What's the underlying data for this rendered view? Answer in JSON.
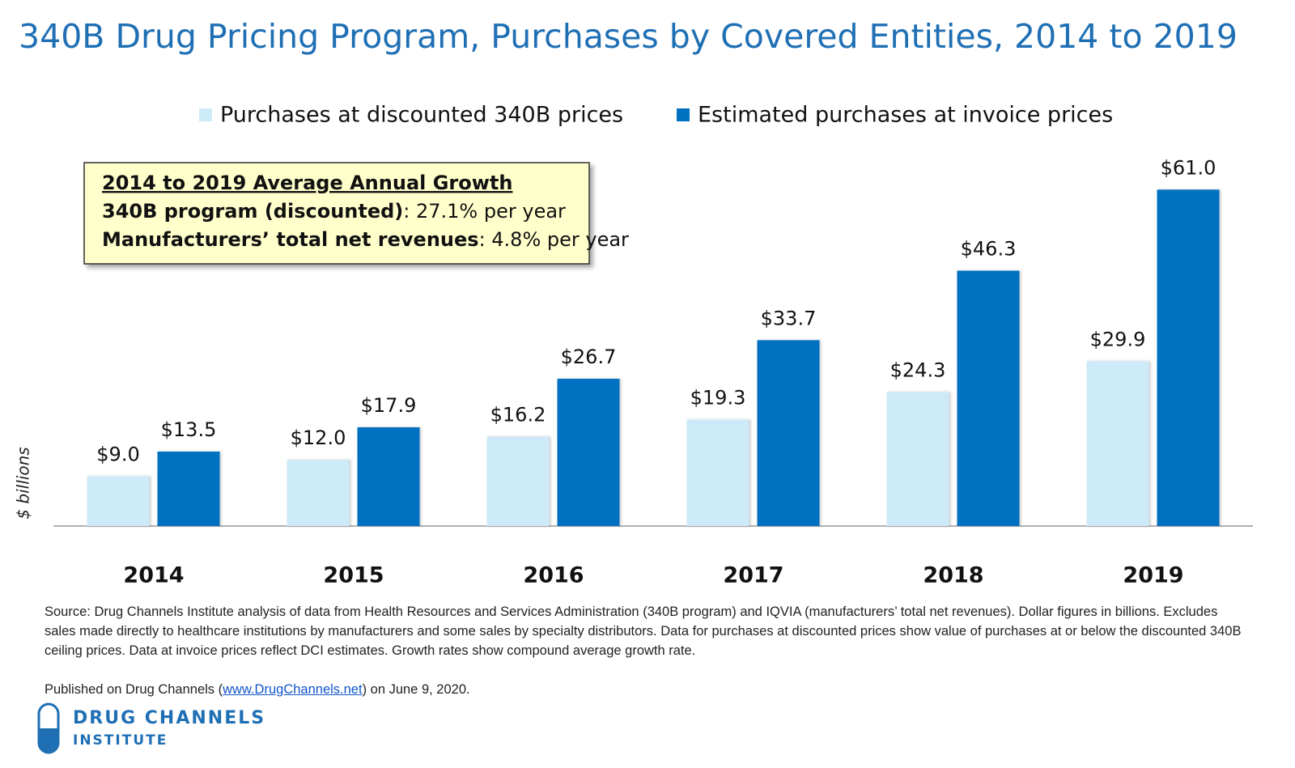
{
  "chart_data": {
    "type": "bar",
    "title": "340B Drug Pricing Program, Purchases by Covered Entities, 2014 to 2019",
    "y_label": "$ billions",
    "categories": [
      "2014",
      "2015",
      "2016",
      "2017",
      "2018",
      "2019"
    ],
    "series": [
      {
        "name": "Purchases at discounted 340B prices",
        "color": "#cdeaf8",
        "values": [
          9.0,
          12.0,
          16.2,
          19.3,
          24.3,
          29.9
        ],
        "value_labels": [
          "$9.0",
          "$12.0",
          "$16.2",
          "$19.3",
          "$24.3",
          "$29.9"
        ]
      },
      {
        "name": "Estimated purchases at invoice prices",
        "color": "#0070c0",
        "values": [
          13.5,
          17.9,
          26.7,
          33.7,
          46.3,
          61.0
        ],
        "value_labels": [
          "$13.5",
          "$17.9",
          "$26.7",
          "$33.7",
          "$46.3",
          "$61.0"
        ]
      }
    ],
    "ylim": [
      0,
      70
    ],
    "annotation": {
      "title": "2014 to 2019 Average Annual Growth",
      "lines": [
        {
          "label": "340B program (discounted)",
          "text": ": 27.1% per year"
        },
        {
          "label": "Manufacturers’ total net revenues",
          "text": ": 4.8% per year"
        }
      ]
    },
    "source": "Source: Drug Channels Institute analysis of data from Health Resources and Services Administration (340B program) and IQVIA (manufacturers’ total net revenues). Dollar figures in billions. Excludes sales made directly to healthcare institutions by manufacturers and some sales by specialty distributors. Data for purchases at discounted prices show value of purchases at or below the discounted 340B ceiling prices. Data at invoice prices reflect DCI estimates. Growth rates show compound average growth rate.",
    "published": {
      "before": "Published on Drug Channels (",
      "link": "www.DrugChannels.net",
      "after": ") on June 9, 2020."
    },
    "logo": {
      "line1": "DRUG CHANNELS",
      "line2": "INSTITUTE"
    }
  }
}
